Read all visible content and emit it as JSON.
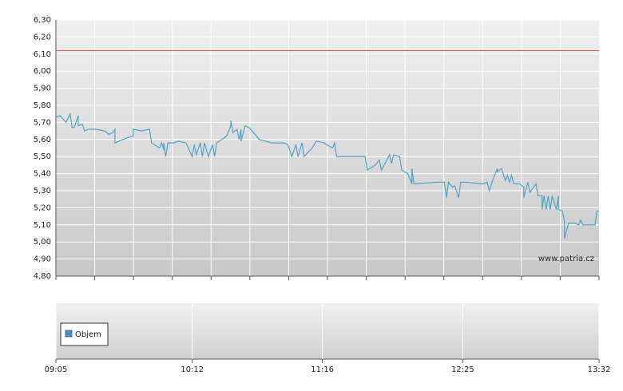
{
  "chart_data": {
    "type": "line",
    "x": [
      "09:05",
      "09:07",
      "09:10",
      "09:12",
      "09:12",
      "09:13",
      "09:14",
      "09:16",
      "09:16",
      "09:18",
      "09:19",
      "09:21",
      "09:23",
      "09:25",
      "09:29",
      "09:31",
      "09:33",
      "09:34",
      "09:34",
      "09:40",
      "09:43",
      "09:43",
      "09:47",
      "09:51",
      "09:52",
      "09:56",
      "09:57",
      "09:58",
      "09:58",
      "09:59",
      "10:00",
      "10:03",
      "10:05",
      "10:09",
      "10:12",
      "10:13",
      "10:14",
      "10:16",
      "10:17",
      "10:18",
      "10:20",
      "10:22",
      "10:23",
      "10:24",
      "10:29",
      "10:31",
      "10:31",
      "10:32",
      "10:34",
      "10:35",
      "10:36",
      "10:36",
      "10:38",
      "10:40",
      "10:45",
      "10:48",
      "10:51",
      "10:57",
      "10:59",
      "11:01",
      "11:03",
      "11:04",
      "11:06",
      "11:07",
      "11:11",
      "11:13",
      "11:17",
      "11:18",
      "11:21",
      "11:22",
      "11:23",
      "11:26",
      "11:37",
      "11:38",
      "11:42",
      "11:44",
      "11:45",
      "11:49",
      "11:50",
      "11:51",
      "11:54",
      "11:55",
      "11:58",
      "12:00",
      "12:00",
      "12:01",
      "12:13",
      "12:16",
      "12:17",
      "12:18",
      "12:20",
      "12:21",
      "12:23",
      "12:24",
      "12:26",
      "12:35",
      "12:37",
      "12:38",
      "12:40",
      "12:42",
      "12:42",
      "12:44",
      "12:46",
      "12:47",
      "12:48",
      "12:49",
      "12:50",
      "12:53",
      "12:55",
      "12:55",
      "12:57",
      "12:58",
      "13:01",
      "13:02",
      "13:04",
      "13:04",
      "13:05",
      "13:06",
      "13:07",
      "13:08",
      "13:09",
      "13:11",
      "13:12",
      "13:12",
      "13:14",
      "13:15",
      "13:15",
      "13:17",
      "13:20",
      "13:22",
      "13:23",
      "13:24",
      "13:30",
      "13:31",
      "13:32"
    ],
    "series": [
      {
        "color": "#4fa3c7",
        "values": [
          5.73,
          5.74,
          5.7,
          5.75,
          5.75,
          5.67,
          5.67,
          5.74,
          5.68,
          5.69,
          5.65,
          5.66,
          5.66,
          5.66,
          5.65,
          5.63,
          5.64,
          5.66,
          5.58,
          5.61,
          5.62,
          5.66,
          5.65,
          5.66,
          5.58,
          5.55,
          5.58,
          5.54,
          5.58,
          5.5,
          5.58,
          5.58,
          5.59,
          5.58,
          5.5,
          5.57,
          5.51,
          5.58,
          5.5,
          5.58,
          5.5,
          5.57,
          5.5,
          5.58,
          5.62,
          5.68,
          5.71,
          5.64,
          5.66,
          5.6,
          5.66,
          5.59,
          5.68,
          5.67,
          5.6,
          5.59,
          5.58,
          5.58,
          5.57,
          5.5,
          5.57,
          5.5,
          5.58,
          5.5,
          5.55,
          5.59,
          5.58,
          5.57,
          5.55,
          5.58,
          5.5,
          5.5,
          5.5,
          5.42,
          5.45,
          5.48,
          5.42,
          5.51,
          5.46,
          5.51,
          5.5,
          5.42,
          5.4,
          5.34,
          5.43,
          5.34,
          5.35,
          5.35,
          5.26,
          5.35,
          5.32,
          5.33,
          5.26,
          5.35,
          5.35,
          5.34,
          5.35,
          5.3,
          5.37,
          5.43,
          5.41,
          5.43,
          5.36,
          5.39,
          5.35,
          5.39,
          5.34,
          5.34,
          5.32,
          5.26,
          5.35,
          5.29,
          5.34,
          5.27,
          5.27,
          5.19,
          5.27,
          5.19,
          5.27,
          5.19,
          5.27,
          5.19,
          5.27,
          5.19,
          5.18,
          5.12,
          5.02,
          5.11,
          5.11,
          5.1,
          5.13,
          5.1,
          5.1,
          5.18,
          5.18
        ]
      }
    ],
    "reference_line": {
      "value": 6.12,
      "color": "#d9534f"
    },
    "ylim": [
      4.8,
      6.3
    ],
    "yticks": [
      {
        "value": 4.8,
        "label": "4,80"
      },
      {
        "value": 4.9,
        "label": "4,90"
      },
      {
        "value": 5.0,
        "label": "5,00"
      },
      {
        "value": 5.1,
        "label": "5,10"
      },
      {
        "value": 5.2,
        "label": "5,20"
      },
      {
        "value": 5.3,
        "label": "5,30"
      },
      {
        "value": 5.4,
        "label": "5,40"
      },
      {
        "value": 5.5,
        "label": "5,50"
      },
      {
        "value": 5.6,
        "label": "5,60"
      },
      {
        "value": 5.7,
        "label": "5,70"
      },
      {
        "value": 5.8,
        "label": "5,80"
      },
      {
        "value": 5.9,
        "label": "5,90"
      },
      {
        "value": 6.0,
        "label": "6,00"
      },
      {
        "value": 6.1,
        "label": "6,10"
      },
      {
        "value": 6.2,
        "label": "6,20"
      },
      {
        "value": 6.3,
        "label": "6,30"
      }
    ],
    "xlim": [
      "09:05",
      "13:32"
    ],
    "xticks": [
      "09:05",
      "10:12",
      "11:16",
      "12:25",
      "13:32"
    ],
    "grid": true,
    "watermark": "www.patria.cz",
    "volume_legend": {
      "name": "Objem",
      "color": "#4a90c8"
    }
  }
}
